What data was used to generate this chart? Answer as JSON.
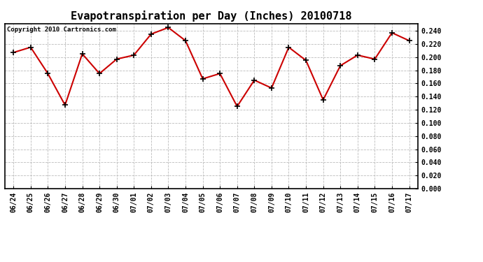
{
  "title": "Evapotranspiration per Day (Inches) 20100718",
  "copyright_text": "Copyright 2010 Cartronics.com",
  "dates": [
    "06/24",
    "06/25",
    "06/26",
    "06/27",
    "06/28",
    "06/29",
    "06/30",
    "07/01",
    "07/02",
    "07/03",
    "07/04",
    "07/05",
    "07/06",
    "07/07",
    "07/08",
    "07/09",
    "07/10",
    "07/11",
    "07/12",
    "07/13",
    "07/14",
    "07/15",
    "07/16",
    "07/17"
  ],
  "values": [
    0.207,
    0.215,
    0.175,
    0.127,
    0.205,
    0.175,
    0.197,
    0.203,
    0.235,
    0.245,
    0.225,
    0.167,
    0.175,
    0.125,
    0.165,
    0.153,
    0.215,
    0.195,
    0.135,
    0.187,
    0.203,
    0.197,
    0.237,
    0.225
  ],
  "ylim": [
    0.0,
    0.25
  ],
  "ytick_step": 0.02,
  "line_color": "#cc0000",
  "marker": "+",
  "marker_color": "#000000",
  "marker_size": 6,
  "line_width": 1.5,
  "background_color": "#ffffff",
  "grid_color": "#bbbbbb",
  "title_fontsize": 11,
  "tick_fontsize": 7,
  "copyright_fontsize": 6.5
}
